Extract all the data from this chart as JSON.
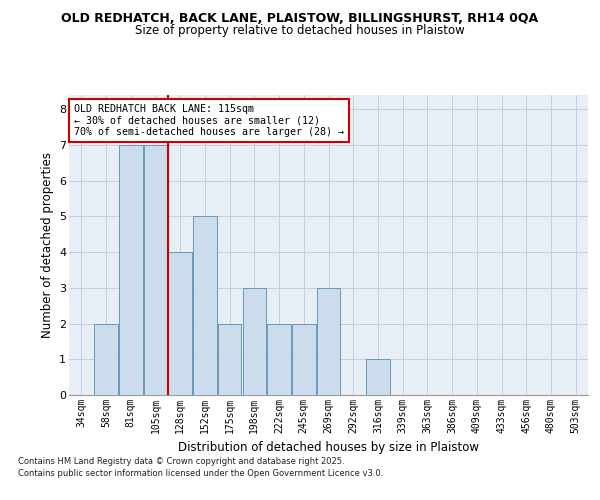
{
  "title_line1": "OLD REDHATCH, BACK LANE, PLAISTOW, BILLINGSHURST, RH14 0QA",
  "title_line2": "Size of property relative to detached houses in Plaistow",
  "xlabel": "Distribution of detached houses by size in Plaistow",
  "ylabel": "Number of detached properties",
  "categories": [
    "34sqm",
    "58sqm",
    "81sqm",
    "105sqm",
    "128sqm",
    "152sqm",
    "175sqm",
    "198sqm",
    "222sqm",
    "245sqm",
    "269sqm",
    "292sqm",
    "316sqm",
    "339sqm",
    "363sqm",
    "386sqm",
    "409sqm",
    "433sqm",
    "456sqm",
    "480sqm",
    "503sqm"
  ],
  "values": [
    0,
    2,
    7,
    7,
    4,
    5,
    2,
    3,
    2,
    2,
    3,
    0,
    1,
    0,
    0,
    0,
    0,
    0,
    0,
    0,
    0
  ],
  "bar_color": "#ccdcec",
  "bar_edgecolor": "#6699bb",
  "red_line_label": "OLD REDHATCH BACK LANE: 115sqm",
  "annotation_line2": "← 30% of detached houses are smaller (12)",
  "annotation_line3": "70% of semi-detached houses are larger (28) →",
  "annotation_box_edgecolor": "#cc0000",
  "annotation_box_facecolor": "#ffffff",
  "ylim": [
    0,
    8.4
  ],
  "yticks": [
    0,
    1,
    2,
    3,
    4,
    5,
    6,
    7,
    8
  ],
  "grid_color": "#c0cfe0",
  "background_color": "#e8eef6",
  "footer_line1": "Contains HM Land Registry data © Crown copyright and database right 2025.",
  "footer_line2": "Contains public sector information licensed under the Open Government Licence v3.0.",
  "title_fontsize": 9,
  "subtitle_fontsize": 8.5,
  "red_line_x": 3.5
}
